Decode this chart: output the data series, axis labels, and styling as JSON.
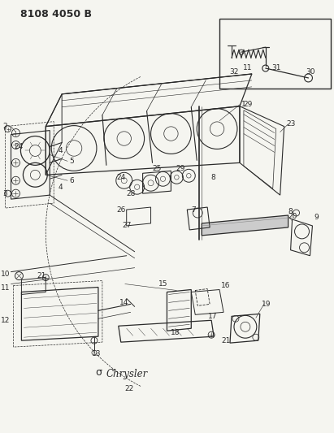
{
  "title": "8108 4050 B",
  "bg": "#f5f5f0",
  "lc": "#2a2a2a",
  "fig_w": 4.11,
  "fig_h": 5.33,
  "dpi": 100
}
